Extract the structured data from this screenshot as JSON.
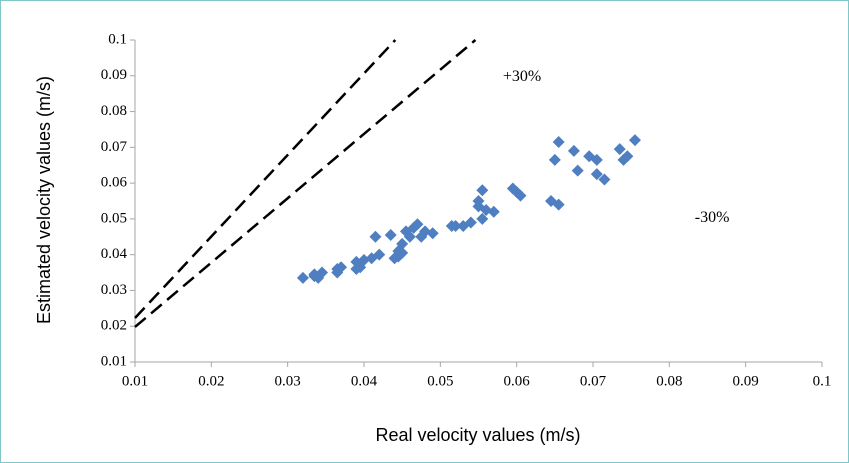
{
  "chart_data": {
    "type": "scatter",
    "x_label": "Real velocity values (m/s)",
    "y_label": "Estimated velocity values (m/s)",
    "xlim": [
      0.01,
      0.1
    ],
    "ylim": [
      0.01,
      0.1
    ],
    "xticks": [
      0.01,
      0.02,
      0.03,
      0.04,
      0.05,
      0.06,
      0.07,
      0.08,
      0.09,
      0.1
    ],
    "yticks": [
      0.01,
      0.02,
      0.03,
      0.04,
      0.05,
      0.06,
      0.07,
      0.08,
      0.09,
      0.1
    ],
    "annotations": [
      {
        "text": "+30%",
        "x": 0.0607,
        "y": 0.0896
      },
      {
        "text": "-30%",
        "x": 0.0856,
        "y": 0.0502
      }
    ],
    "series": [
      {
        "type": "scatter",
        "color": "#4f7fc0",
        "x": [
          0.032,
          0.0335,
          0.034,
          0.0345,
          0.0335,
          0.0365,
          0.0365,
          0.037,
          0.039,
          0.039,
          0.0395,
          0.04,
          0.041,
          0.0415,
          0.042,
          0.0435,
          0.044,
          0.0445,
          0.0445,
          0.045,
          0.045,
          0.0455,
          0.046,
          0.0465,
          0.047,
          0.0475,
          0.048,
          0.049,
          0.0515,
          0.052,
          0.053,
          0.054,
          0.055,
          0.055,
          0.0555,
          0.0555,
          0.056,
          0.057,
          0.0595,
          0.06,
          0.0605,
          0.0645,
          0.065,
          0.0655,
          0.0655,
          0.0675,
          0.068,
          0.0695,
          0.0705,
          0.0705,
          0.0715,
          0.0735,
          0.074,
          0.0745,
          0.0755
        ],
        "values": [
          0.0335,
          0.034,
          0.0335,
          0.035,
          0.0345,
          0.035,
          0.036,
          0.0365,
          0.036,
          0.038,
          0.0365,
          0.0385,
          0.039,
          0.045,
          0.04,
          0.0455,
          0.039,
          0.0395,
          0.041,
          0.0405,
          0.043,
          0.0465,
          0.045,
          0.0475,
          0.0485,
          0.045,
          0.0465,
          0.046,
          0.048,
          0.048,
          0.048,
          0.049,
          0.055,
          0.0535,
          0.058,
          0.05,
          0.0525,
          0.052,
          0.0585,
          0.0575,
          0.0565,
          0.055,
          0.0665,
          0.054,
          0.0715,
          0.069,
          0.0635,
          0.0675,
          0.0665,
          0.0625,
          0.061,
          0.0695,
          0.0665,
          0.0675,
          0.072
        ]
      },
      {
        "type": "line",
        "dash": true,
        "color": "#000000",
        "x": [
          0.01,
          0.0441
        ],
        "values": [
          0.0223,
          0.1
        ]
      },
      {
        "type": "line",
        "dash": true,
        "color": "#000000",
        "x": [
          0.01,
          0.0546
        ],
        "values": [
          0.0198,
          0.1
        ]
      }
    ]
  }
}
